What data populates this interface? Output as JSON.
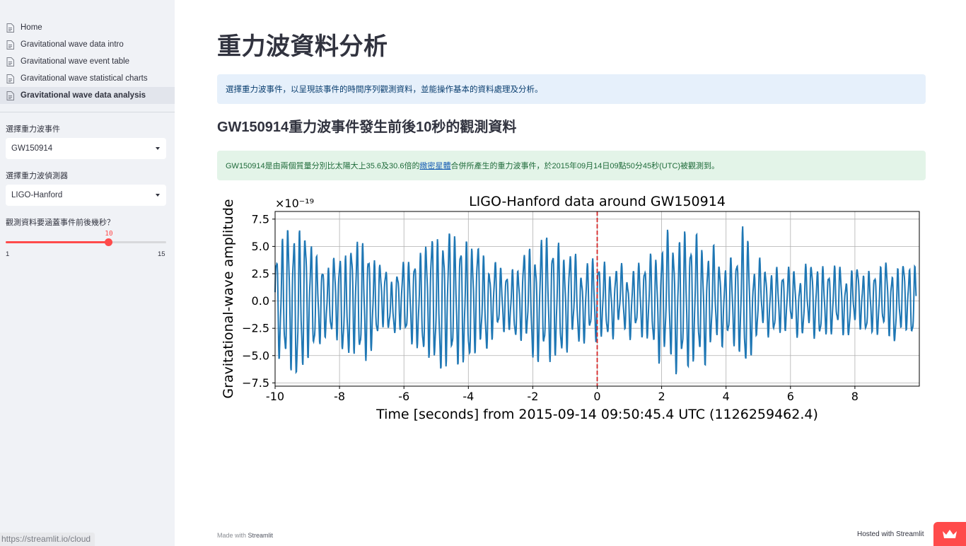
{
  "sidebar": {
    "nav": [
      {
        "label": "Home",
        "active": false
      },
      {
        "label": "Gravitational wave data intro",
        "active": false
      },
      {
        "label": "Gravitational wave event table",
        "active": false
      },
      {
        "label": "Gravitational wave statistical charts",
        "active": false
      },
      {
        "label": "Gravitational wave data analysis",
        "active": true
      }
    ],
    "event_select": {
      "label": "選擇重力波事件",
      "value": "GW150914"
    },
    "detector_select": {
      "label": "選擇重力波偵測器",
      "value": "LIGO-Hanford"
    },
    "slider": {
      "label": "觀測資料要涵蓋事件前後幾秒？",
      "value": 10,
      "min": 1,
      "max": 15,
      "value_text": "10",
      "min_text": "1",
      "max_text": "15"
    },
    "status_url": "https://streamlit.io/cloud"
  },
  "main": {
    "title": "重力波資料分析",
    "info": "選擇重力波事件，以呈現該事件的時間序列觀測資料，並能操作基本的資料處理及分析。",
    "subheader": "GW150914重力波事件發生前後10秒的觀測資料",
    "success": {
      "before": "GW150914是由兩個質量分別比太陽大上35.6及30.6倍的",
      "link": "緻密星體",
      "after": "合併所產生的重力波事件，於2015年09月14日09點50分45秒(UTC)被觀測到。"
    }
  },
  "footer": {
    "made_with": "Made with",
    "streamlit": "Streamlit",
    "hosted": "Hosted with Streamlit"
  },
  "colors": {
    "accent": "#ff4b4b",
    "series": "#1f77b4",
    "event_marker": "#d62728"
  },
  "chart_data": {
    "type": "line",
    "title": "LIGO-Hanford data around GW150914",
    "xlabel": "Time [seconds] from 2015-09-14 09:50:45.4 UTC (1126259462.4)",
    "ylabel": "Gravitational-wave amplitude",
    "y_scale_label": "×10⁻¹⁹",
    "xlim": [
      -10,
      10
    ],
    "ylim": [
      -7.8,
      8.2
    ],
    "xticks": [
      -10,
      -8,
      -6,
      -4,
      -2,
      0,
      2,
      4,
      6,
      8
    ],
    "xtick_labels": [
      "-10",
      "-8",
      "-6",
      "-4",
      "-2",
      "0",
      "2",
      "4",
      "6",
      "8"
    ],
    "yticks": [
      -7.5,
      -5.0,
      -2.5,
      0.0,
      2.5,
      5.0,
      7.5
    ],
    "ytick_labels": [
      "−7.5",
      "−5.0",
      "−2.5",
      "0.0",
      "2.5",
      "5.0",
      "7.5"
    ],
    "grid": true,
    "event_line_x": 0,
    "series": [
      {
        "x": [
          -10.0,
          -9.6,
          -9.2,
          -8.8,
          -8.4,
          -8.0,
          -7.6,
          -7.2,
          -6.8,
          -6.4,
          -6.0,
          -5.6,
          -5.2,
          -4.8,
          -4.4,
          -4.0,
          -3.6,
          -3.2,
          -2.8,
          -2.4,
          -2.0,
          -1.6,
          -1.2,
          -0.8,
          -0.4,
          0.0,
          0.4,
          0.8,
          1.2,
          1.6,
          2.0,
          2.4,
          2.8,
          3.2,
          3.6,
          4.0,
          4.4,
          4.6,
          4.8,
          5.2,
          5.6,
          6.0,
          6.4,
          6.8,
          7.2,
          7.6,
          8.0,
          8.4,
          8.8,
          9.2,
          9.6,
          10.0
        ],
        "y_envelope": [
          5.0,
          6.8,
          7.3,
          5.0,
          3.2,
          4.5,
          5.5,
          5.8,
          3.5,
          2.5,
          3.5,
          4.5,
          6.0,
          6.5,
          6.2,
          6.0,
          4.8,
          3.5,
          2.8,
          3.8,
          5.2,
          6.0,
          5.5,
          4.2,
          3.5,
          4.0,
          3.2,
          2.8,
          3.2,
          4.0,
          5.5,
          6.2,
          6.5,
          5.8,
          4.5,
          3.5,
          5.0,
          7.8,
          4.0,
          3.0,
          3.2,
          2.8,
          3.0,
          3.5,
          3.2,
          3.0,
          2.8,
          3.0,
          3.2,
          3.5,
          3.2,
          3.8
        ]
      }
    ]
  }
}
